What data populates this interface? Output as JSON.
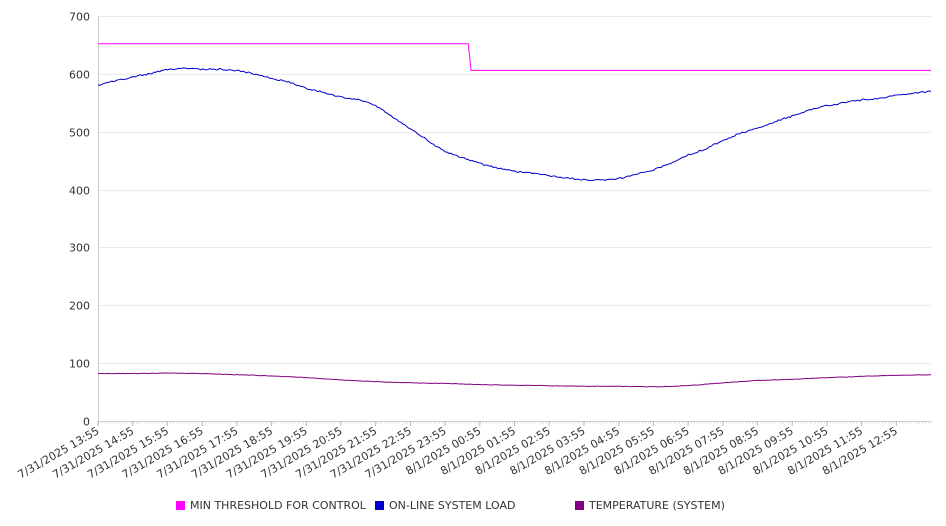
{
  "chart_data": {
    "type": "line",
    "title": "",
    "xlabel": "",
    "ylabel": "",
    "ylim": [
      0,
      700
    ],
    "y_ticks": [
      0,
      100,
      200,
      300,
      400,
      500,
      600,
      700
    ],
    "x_start": "7/31/2025 13:55",
    "x_end": "8/1/2025 13:55",
    "x_ticks": [
      "7/31/2025 13:55",
      "7/31/2025 14:55",
      "7/31/2025 15:55",
      "7/31/2025 16:55",
      "7/31/2025 17:55",
      "7/31/2025 18:55",
      "7/31/2025 19:55",
      "7/31/2025 20:55",
      "7/31/2025 21:55",
      "7/31/2025 22:55",
      "7/31/2025 23:55",
      "8/1/2025 00:55",
      "8/1/2025 01:55",
      "8/1/2025 02:55",
      "8/1/2025 03:55",
      "8/1/2025 04:55",
      "8/1/2025 05:55",
      "8/1/2025 06:55",
      "8/1/2025 07:55",
      "8/1/2025 08:55",
      "8/1/2025 09:55",
      "8/1/2025 10:55",
      "8/1/2025 11:55",
      "8/1/2025 12:55"
    ],
    "grid": true,
    "legend_position": "bottom",
    "series": [
      {
        "name": "MIN THRESHOLD FOR CONTROL",
        "color": "#ff00ff",
        "step": true,
        "points": [
          [
            "7/31/2025 13:55",
            652
          ],
          [
            "8/1/2025 00:35",
            652
          ],
          [
            "8/1/2025 00:40",
            606
          ],
          [
            "8/1/2025 13:55",
            606
          ]
        ]
      },
      {
        "name": "ON-LINE SYSTEM LOAD",
        "color": "#0000cc",
        "step": false,
        "points": [
          [
            "7/31/2025 13:55",
            580
          ],
          [
            "7/31/2025 14:25",
            588
          ],
          [
            "7/31/2025 14:55",
            595
          ],
          [
            "7/31/2025 15:25",
            600
          ],
          [
            "7/31/2025 15:55",
            608
          ],
          [
            "7/31/2025 16:25",
            610
          ],
          [
            "7/31/2025 16:55",
            608
          ],
          [
            "7/31/2025 17:25",
            608
          ],
          [
            "7/31/2025 17:55",
            606
          ],
          [
            "7/31/2025 18:25",
            600
          ],
          [
            "7/31/2025 18:55",
            592
          ],
          [
            "7/31/2025 19:25",
            586
          ],
          [
            "7/31/2025 19:55",
            575
          ],
          [
            "7/31/2025 20:25",
            568
          ],
          [
            "7/31/2025 20:55",
            560
          ],
          [
            "7/31/2025 21:25",
            556
          ],
          [
            "7/31/2025 21:55",
            545
          ],
          [
            "7/31/2025 22:25",
            525
          ],
          [
            "7/31/2025 22:55",
            505
          ],
          [
            "7/31/2025 23:25",
            485
          ],
          [
            "7/31/2025 23:55",
            465
          ],
          [
            "8/1/2025 00:25",
            455
          ],
          [
            "8/1/2025 00:55",
            445
          ],
          [
            "8/1/2025 01:25",
            437
          ],
          [
            "8/1/2025 01:55",
            432
          ],
          [
            "8/1/2025 02:25",
            428
          ],
          [
            "8/1/2025 02:55",
            424
          ],
          [
            "8/1/2025 03:25",
            420
          ],
          [
            "8/1/2025 03:55",
            417
          ],
          [
            "8/1/2025 04:25",
            416
          ],
          [
            "8/1/2025 04:55",
            419
          ],
          [
            "8/1/2025 05:25",
            426
          ],
          [
            "8/1/2025 05:55",
            434
          ],
          [
            "8/1/2025 06:25",
            445
          ],
          [
            "8/1/2025 06:55",
            460
          ],
          [
            "8/1/2025 07:25",
            470
          ],
          [
            "8/1/2025 07:55",
            485
          ],
          [
            "8/1/2025 08:25",
            497
          ],
          [
            "8/1/2025 08:55",
            507
          ],
          [
            "8/1/2025 09:25",
            517
          ],
          [
            "8/1/2025 09:55",
            527
          ],
          [
            "8/1/2025 10:25",
            537
          ],
          [
            "8/1/2025 10:55",
            545
          ],
          [
            "8/1/2025 11:25",
            550
          ],
          [
            "8/1/2025 11:55",
            555
          ],
          [
            "8/1/2025 12:25",
            558
          ],
          [
            "8/1/2025 12:55",
            563
          ],
          [
            "8/1/2025 13:25",
            567
          ],
          [
            "8/1/2025 13:55",
            570
          ]
        ]
      },
      {
        "name": "TEMPERATURE (SYSTEM)",
        "color": "#800080",
        "step": false,
        "points": [
          [
            "7/31/2025 13:55",
            82
          ],
          [
            "7/31/2025 14:55",
            82
          ],
          [
            "7/31/2025 15:55",
            83
          ],
          [
            "7/31/2025 16:55",
            82
          ],
          [
            "7/31/2025 17:55",
            80
          ],
          [
            "7/31/2025 18:55",
            78
          ],
          [
            "7/31/2025 19:55",
            75
          ],
          [
            "7/31/2025 20:55",
            71
          ],
          [
            "7/31/2025 21:55",
            68
          ],
          [
            "7/31/2025 22:55",
            66
          ],
          [
            "7/31/2025 23:55",
            65
          ],
          [
            "8/1/2025 00:55",
            63
          ],
          [
            "8/1/2025 01:55",
            62
          ],
          [
            "8/1/2025 02:55",
            61
          ],
          [
            "8/1/2025 03:55",
            60
          ],
          [
            "8/1/2025 04:55",
            60
          ],
          [
            "8/1/2025 05:55",
            59
          ],
          [
            "8/1/2025 06:55",
            61
          ],
          [
            "8/1/2025 07:55",
            66
          ],
          [
            "8/1/2025 08:55",
            70
          ],
          [
            "8/1/2025 09:55",
            72
          ],
          [
            "8/1/2025 10:55",
            75
          ],
          [
            "8/1/2025 11:55",
            77
          ],
          [
            "8/1/2025 12:55",
            79
          ],
          [
            "8/1/2025 13:55",
            80
          ]
        ]
      }
    ]
  }
}
